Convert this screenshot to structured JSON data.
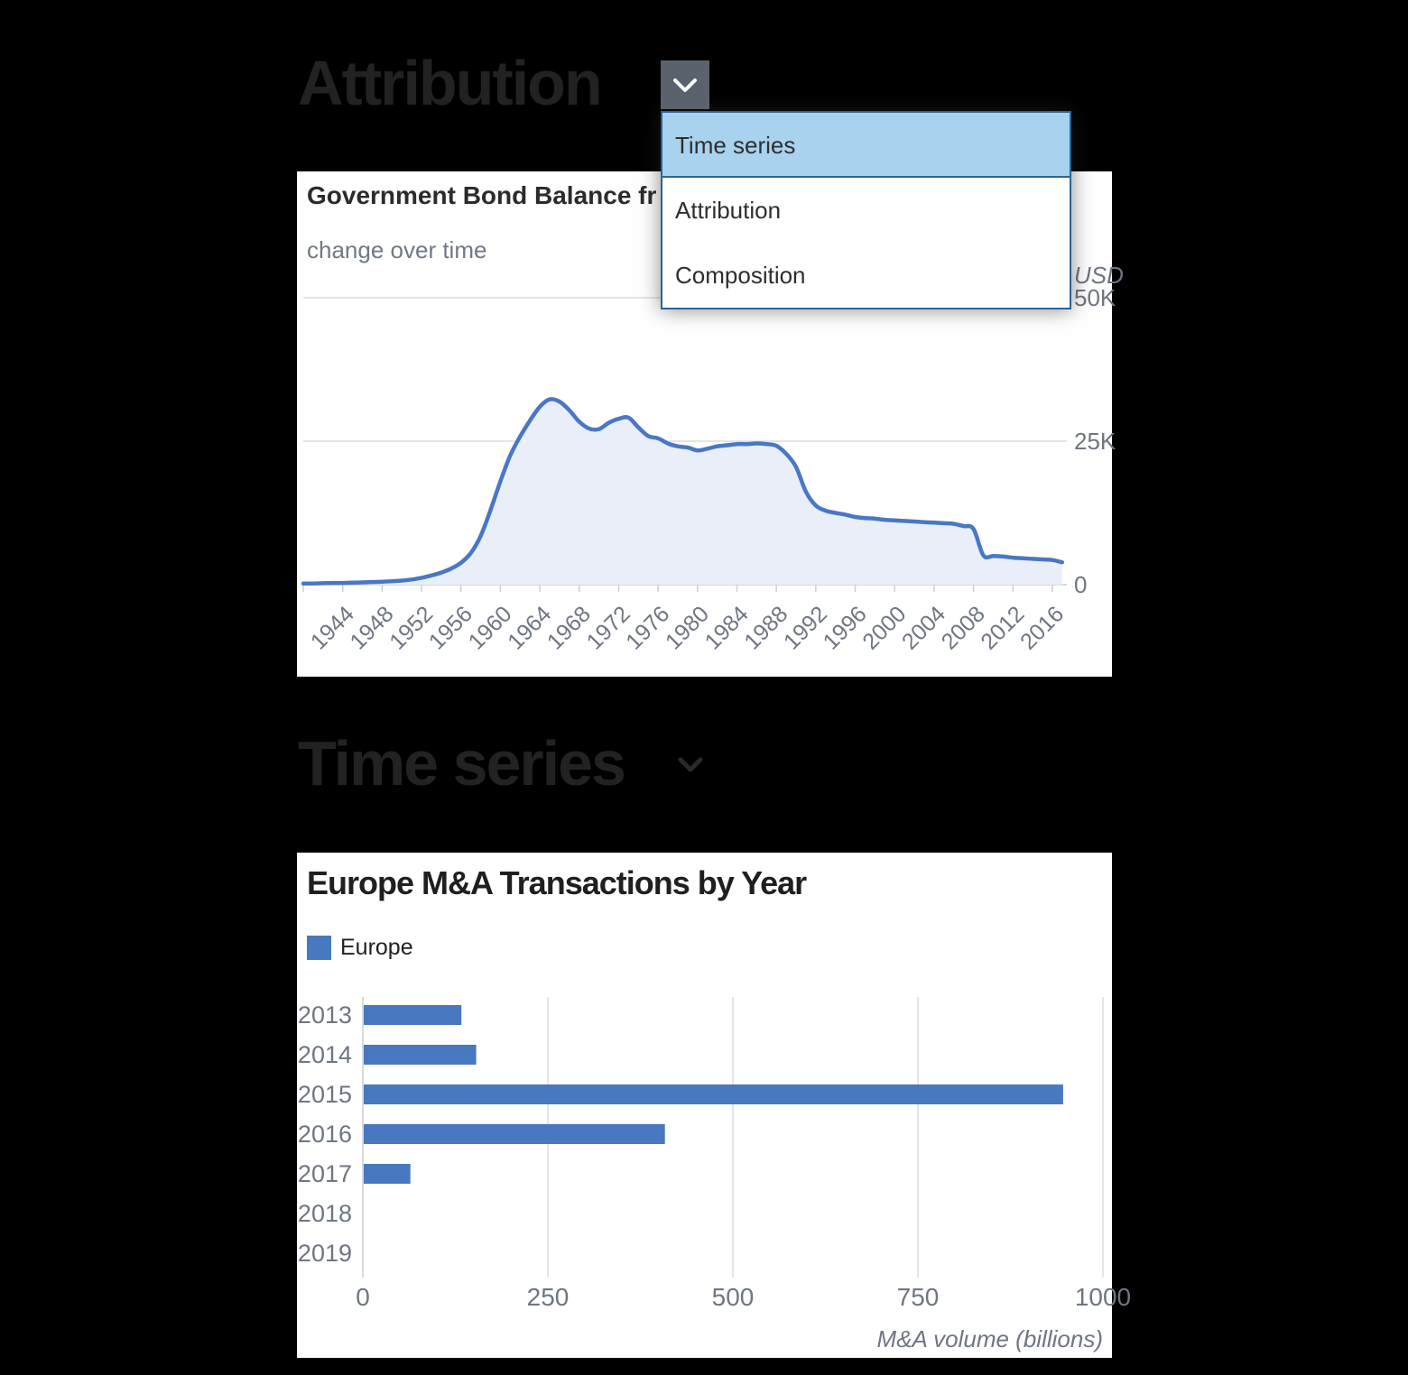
{
  "sections": [
    {
      "heading": "Attribution"
    },
    {
      "heading": "Time series"
    }
  ],
  "dropdown": {
    "items": [
      "Time series",
      "Attribution",
      "Composition"
    ],
    "selected": "Time series",
    "highlight_color": "#a8d2ee",
    "border_color": "#2a6496",
    "button_color": "#5a626e"
  },
  "colors": {
    "card_background": "#ffffff",
    "grid": "#d9dde2",
    "axis": "#c9ced6",
    "tick_text": "#6e7684",
    "area_line": "#4a77c4",
    "area_fill": "#e9eef8",
    "bar": "#4878bf"
  },
  "chart_data": [
    {
      "type": "area",
      "title": "Government Bond Balance fr",
      "subtitle": "change over time",
      "y_axis_title": "USD",
      "y_unit": "thousands of USD",
      "color": "#4a77c4",
      "fill": "#e9eef8",
      "grid": "horizontal",
      "ylim": [
        0,
        50
      ],
      "yticks": [
        0,
        25,
        50
      ],
      "ytick_labels": [
        "0",
        "25K",
        "50K"
      ],
      "xticks": [
        1944,
        1948,
        1952,
        1956,
        1960,
        1964,
        1968,
        1972,
        1976,
        1980,
        1984,
        1988,
        1992,
        1996,
        2000,
        2004,
        2008,
        2012,
        2016
      ],
      "x": [
        1940,
        1941,
        1942,
        1943,
        1944,
        1945,
        1946,
        1947,
        1948,
        1949,
        1950,
        1951,
        1952,
        1953,
        1954,
        1955,
        1956,
        1957,
        1958,
        1959,
        1960,
        1961,
        1962,
        1963,
        1964,
        1965,
        1966,
        1967,
        1968,
        1969,
        1970,
        1971,
        1972,
        1973,
        1974,
        1975,
        1976,
        1977,
        1978,
        1979,
        1980,
        1981,
        1982,
        1983,
        1984,
        1985,
        1986,
        1987,
        1988,
        1989,
        1990,
        1991,
        1992,
        1993,
        1994,
        1995,
        1996,
        1997,
        1998,
        1999,
        2000,
        2001,
        2002,
        2003,
        2004,
        2005,
        2006,
        2007,
        2008,
        2009,
        2010,
        2011,
        2012,
        2013,
        2014,
        2015,
        2016,
        2017
      ],
      "y": [
        0.2,
        0.2,
        0.25,
        0.3,
        0.3,
        0.35,
        0.4,
        0.45,
        0.5,
        0.6,
        0.7,
        0.9,
        1.2,
        1.6,
        2.1,
        2.8,
        3.8,
        5.5,
        8.5,
        13,
        18,
        22.5,
        25.8,
        28.6,
        31,
        32.3,
        31.9,
        30.4,
        28.4,
        27.2,
        27.1,
        28.2,
        28.9,
        29.1,
        27.4,
        25.9,
        25.5,
        24.6,
        24.1,
        23.9,
        23.4,
        23.7,
        24.1,
        24.3,
        24.5,
        24.5,
        24.6,
        24.5,
        24.2,
        22.8,
        20.5,
        16.2,
        13.8,
        12.9,
        12.5,
        12.2,
        11.8,
        11.6,
        11.5,
        11.3,
        11.2,
        11.1,
        11.0,
        10.9,
        10.8,
        10.7,
        10.6,
        10.2,
        9.7,
        5.1,
        5.0,
        4.9,
        4.7,
        4.6,
        4.5,
        4.4,
        4.3,
        3.9
      ]
    },
    {
      "type": "bar",
      "orientation": "horizontal",
      "title": "Europe M&A Transactions by Year",
      "categories": [
        "2013",
        "2014",
        "2015",
        "2016",
        "2017",
        "2018",
        "2019"
      ],
      "series": [
        {
          "name": "Europe",
          "color": "#4878bf",
          "values": [
            132,
            152,
            945,
            407,
            63,
            0,
            0
          ]
        }
      ],
      "xlabel": "M&A volume (billions)",
      "xlim": [
        0,
        1000
      ],
      "xticks": [
        0,
        250,
        500,
        750,
        1000
      ],
      "legend_position": "top-left",
      "grid": "vertical"
    }
  ]
}
